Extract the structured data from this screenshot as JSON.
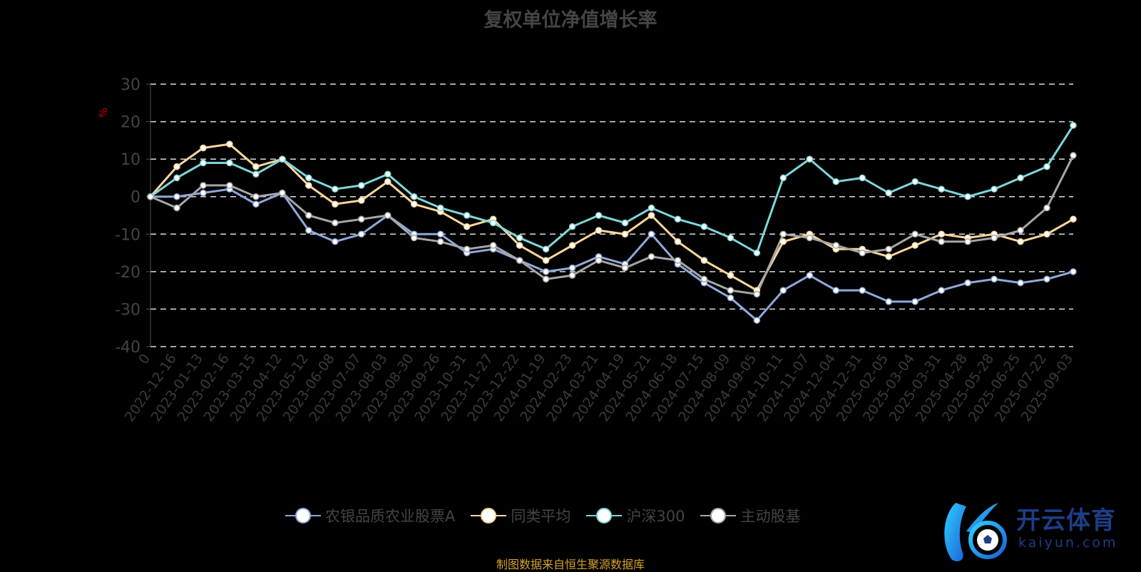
{
  "chart_data": {
    "type": "line",
    "title": "复权单位净值增长率",
    "ylabel": "%",
    "ylim": [
      -40,
      30
    ],
    "yticks": [
      30,
      20,
      10,
      0,
      -10,
      -20,
      -30,
      -40
    ],
    "grid": true,
    "legend_position": "bottom",
    "categories": [
      "0",
      "2022-12-16",
      "2023-01-13",
      "2023-02-16",
      "2023-03-15",
      "2023-04-12",
      "2023-05-12",
      "2023-06-08",
      "2023-07-07",
      "2023-08-03",
      "2023-08-30",
      "2023-09-26",
      "2023-10-31",
      "2023-11-27",
      "2023-12-22",
      "2024-01-19",
      "2024-02-23",
      "2024-03-21",
      "2024-04-19",
      "2024-05-21",
      "2024-06-18",
      "2024-07-15",
      "2024-08-09",
      "2024-09-05",
      "2024-10-11",
      "2024-11-07",
      "2024-12-04",
      "2024-12-31",
      "2025-02-05",
      "2025-03-04",
      "2025-03-31",
      "2025-04-28",
      "2025-05-28",
      "2025-06-25",
      "2025-07-22",
      "2025-09-03"
    ],
    "series": [
      {
        "name": "农银品质农业股票A",
        "color": "#8fa9dc",
        "values": [
          0,
          0,
          1,
          2,
          -2,
          1,
          -9,
          -12,
          -10,
          -5,
          -10,
          -10,
          -15,
          -14,
          -17,
          -20,
          -19,
          -16,
          -18,
          -10,
          -18,
          -23,
          -27,
          -33,
          -25,
          -21,
          -25,
          -25,
          -28,
          -28,
          -25,
          -23,
          -22,
          -23,
          -22,
          -20
        ]
      },
      {
        "name": "同类平均",
        "color": "#fcd79a",
        "values": [
          0,
          8,
          13,
          14,
          8,
          10,
          3,
          -2,
          -1,
          4,
          -2,
          -4,
          -8,
          -6,
          -13,
          -17,
          -13,
          -9,
          -10,
          -5,
          -12,
          -17,
          -21,
          -25,
          -12,
          -10,
          -14,
          -14,
          -16,
          -13,
          -10,
          -11,
          -10,
          -12,
          -10,
          -6
        ]
      },
      {
        "name": "沪深300",
        "color": "#7fd6d9",
        "values": [
          0,
          5,
          9,
          9,
          6,
          10,
          5,
          2,
          3,
          6,
          0,
          -3,
          -5,
          -7,
          -11,
          -14,
          -8,
          -5,
          -7,
          -3,
          -6,
          -8,
          -11,
          -15,
          5,
          10,
          4,
          5,
          1,
          4,
          2,
          0,
          2,
          5,
          8,
          19
        ]
      },
      {
        "name": "主动股基",
        "color": "#a6a6a6",
        "values": [
          0,
          -3,
          3,
          3,
          0,
          1,
          -5,
          -7,
          -6,
          -5,
          -11,
          -12,
          -14,
          -13,
          -17,
          -22,
          -21,
          -17,
          -19,
          -16,
          -17,
          -22,
          -25,
          -26,
          -10,
          -11,
          -13,
          -15,
          -14,
          -10,
          -12,
          -12,
          -11,
          -9,
          -3,
          11
        ]
      }
    ]
  },
  "source": "制图数据来自恒生聚源数据库",
  "watermark": {
    "brand": "开云体育",
    "url": "kaiyun.com"
  }
}
